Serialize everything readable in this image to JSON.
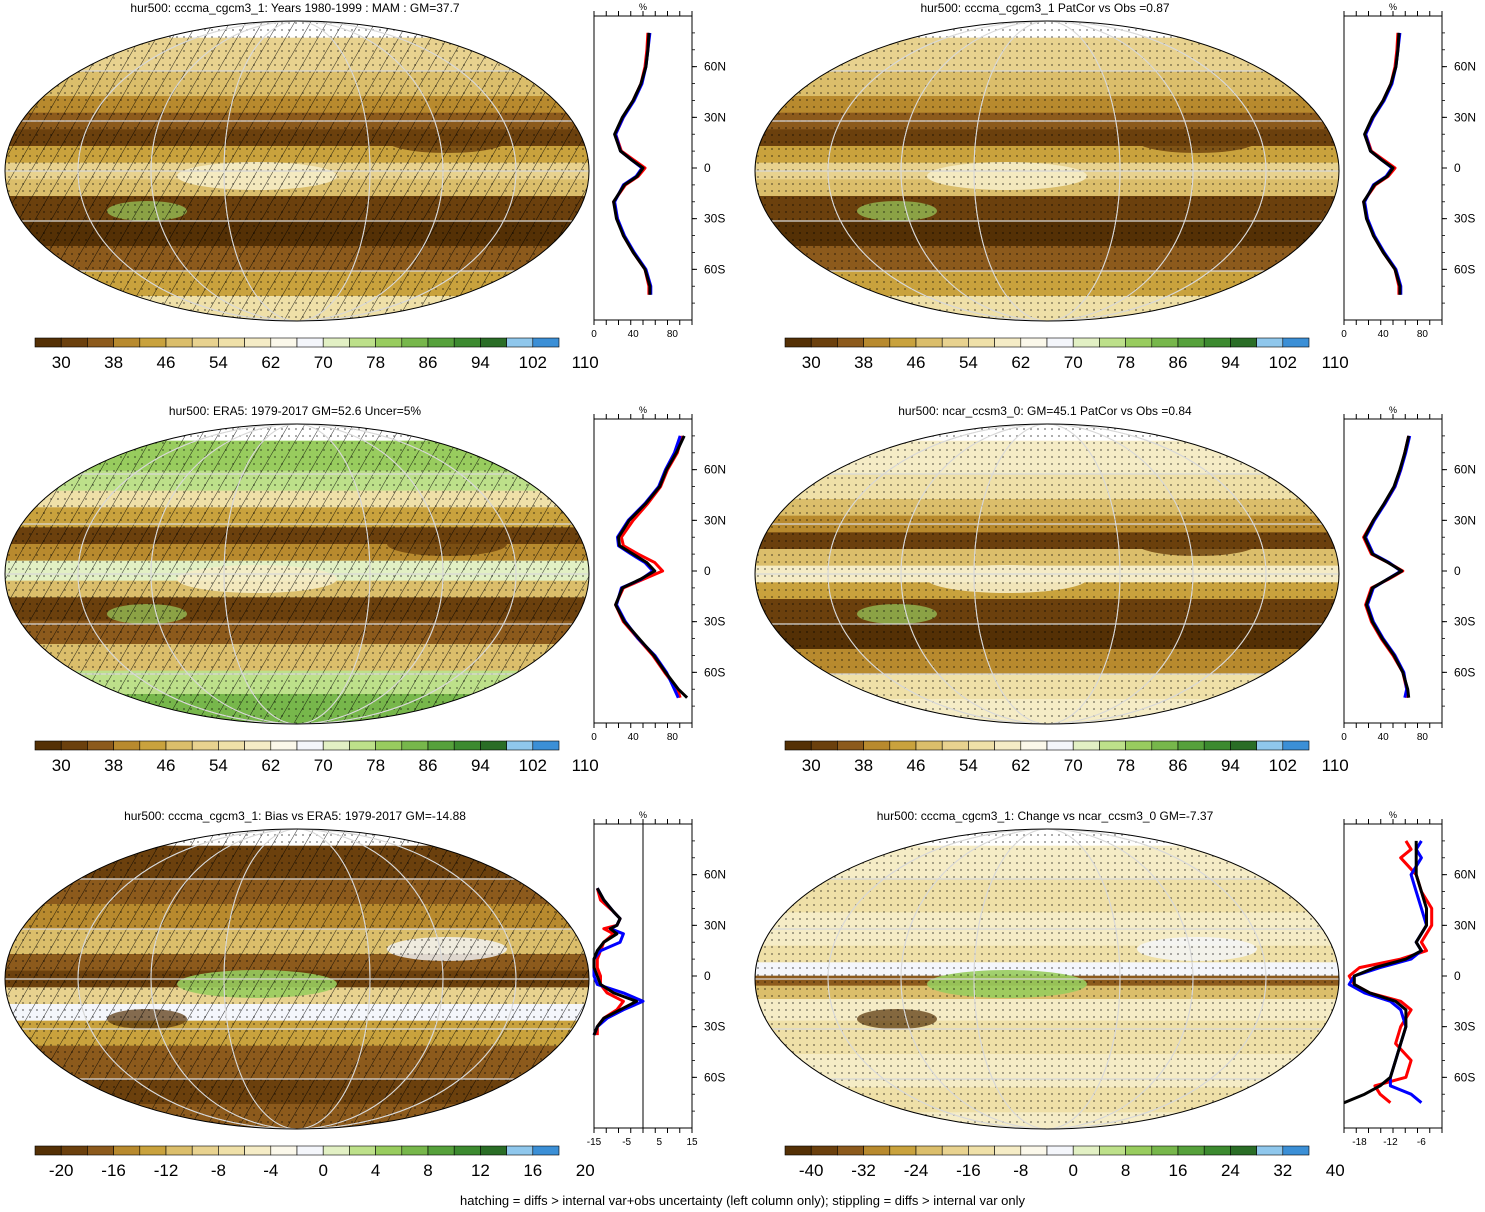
{
  "footer": "hatching = diffs > internal var+obs uncertainty (left column only); stippling = diffs > internal var only",
  "palettes": {
    "abs": [
      "#543005",
      "#6b400d",
      "#8c5a1c",
      "#b88a2e",
      "#c9a23d",
      "#dbbe6b",
      "#e8d28f",
      "#efe0a8",
      "#f5ecc6",
      "#fbf8ea",
      "#f4f6fb",
      "#e2f0c4",
      "#bde08a",
      "#98cc5e",
      "#77b74b",
      "#56a13b",
      "#3c8a2f",
      "#2a6d26",
      "#8fc7ec",
      "#3b8fd6"
    ],
    "div": [
      "#543005",
      "#6b400d",
      "#8c5a1c",
      "#b88a2e",
      "#c9a23d",
      "#dbbe6b",
      "#e8d28f",
      "#efe0a8",
      "#f5ecc6",
      "#fbf8ea",
      "#f4f6fb",
      "#e2f0c4",
      "#bde08a",
      "#98cc5e",
      "#77b74b",
      "#56a13b",
      "#3c8a2f",
      "#2a6d26",
      "#8fc7ec",
      "#3b8fd6"
    ]
  },
  "profile_unit": "%",
  "lat_ticks": [
    "60N",
    "30N",
    "0",
    "30S",
    "60S"
  ],
  "panels": [
    {
      "id": "p1",
      "title": "hur500: cccma_cgcm3_1: Years 1980-1999 : MAM : GM=37.7",
      "hatched": true,
      "cbar_labels": [
        "30",
        "38",
        "46",
        "54",
        "62",
        "70",
        "78",
        "86",
        "94",
        "102",
        "110"
      ],
      "palette": "abs",
      "xticks": [
        "0",
        "40",
        "80"
      ],
      "xrange": [
        0,
        100
      ],
      "zero_line": false,
      "series": [
        {
          "color": "#ff0000",
          "lat": [
            80,
            70,
            60,
            50,
            40,
            30,
            20,
            10,
            5,
            0,
            -5,
            -10,
            -20,
            -30,
            -40,
            -50,
            -60,
            -70,
            -75
          ],
          "val": [
            55,
            54,
            52,
            48,
            40,
            30,
            22,
            28,
            40,
            52,
            45,
            32,
            20,
            24,
            30,
            40,
            52,
            56,
            56
          ]
        },
        {
          "color": "#0000ff",
          "lat": [
            80,
            70,
            60,
            50,
            40,
            30,
            20,
            10,
            5,
            0,
            -5,
            -10,
            -20,
            -30,
            -40,
            -50,
            -60,
            -70,
            -75
          ],
          "val": [
            57,
            55,
            53,
            49,
            41,
            30,
            22,
            27,
            38,
            49,
            43,
            30,
            21,
            24,
            31,
            41,
            53,
            58,
            58
          ]
        },
        {
          "color": "#000000",
          "lat": [
            80,
            70,
            60,
            50,
            40,
            30,
            20,
            10,
            5,
            0,
            -5,
            -10,
            -20,
            -30,
            -40,
            -50,
            -60,
            -70,
            -75
          ],
          "val": [
            56,
            55,
            53,
            48,
            40,
            29,
            21,
            27,
            38,
            50,
            44,
            31,
            20,
            23,
            30,
            40,
            52,
            57,
            57
          ]
        }
      ]
    },
    {
      "id": "p2",
      "title": "hur500: cccma_cgcm3_1 PatCor vs Obs =0.87",
      "hatched": false,
      "cbar_labels": [
        "30",
        "38",
        "46",
        "54",
        "62",
        "70",
        "78",
        "86",
        "94",
        "102",
        "110"
      ],
      "palette": "abs",
      "xticks": [
        "0",
        "40",
        "80"
      ],
      "xrange": [
        0,
        100
      ],
      "zero_line": false,
      "series": [
        {
          "color": "#ff0000",
          "lat": [
            80,
            70,
            60,
            50,
            40,
            30,
            20,
            10,
            5,
            0,
            -5,
            -10,
            -20,
            -30,
            -40,
            -50,
            -60,
            -70,
            -75
          ],
          "val": [
            55,
            54,
            52,
            48,
            40,
            30,
            22,
            28,
            40,
            52,
            45,
            32,
            20,
            24,
            30,
            40,
            52,
            56,
            56
          ]
        },
        {
          "color": "#0000ff",
          "lat": [
            80,
            70,
            60,
            50,
            40,
            30,
            20,
            10,
            5,
            0,
            -5,
            -10,
            -20,
            -30,
            -40,
            -50,
            -60,
            -70,
            -75
          ],
          "val": [
            57,
            55,
            53,
            49,
            41,
            30,
            22,
            27,
            38,
            49,
            43,
            30,
            21,
            24,
            31,
            41,
            53,
            58,
            58
          ]
        },
        {
          "color": "#000000",
          "lat": [
            80,
            70,
            60,
            50,
            40,
            30,
            20,
            10,
            5,
            0,
            -5,
            -10,
            -20,
            -30,
            -40,
            -50,
            -60,
            -70,
            -75
          ],
          "val": [
            56,
            55,
            53,
            48,
            40,
            29,
            21,
            27,
            38,
            50,
            44,
            31,
            20,
            23,
            30,
            40,
            52,
            57,
            57
          ]
        }
      ]
    },
    {
      "id": "p3",
      "title": "hur500: ERA5: 1979-2017 GM=52.6 Uncer=5%",
      "hatched": true,
      "cbar_labels": [
        "30",
        "38",
        "46",
        "54",
        "62",
        "70",
        "78",
        "86",
        "94",
        "102",
        "110"
      ],
      "palette": "abs",
      "xticks": [
        "0",
        "40",
        "80"
      ],
      "xrange": [
        0,
        100
      ],
      "zero_line": false,
      "series": [
        {
          "color": "#ff0000",
          "lat": [
            80,
            70,
            60,
            50,
            40,
            30,
            20,
            15,
            10,
            5,
            0,
            -5,
            -10,
            -20,
            -30,
            -40,
            -50,
            -60,
            -70,
            -75
          ],
          "val": [
            90,
            85,
            75,
            68,
            55,
            40,
            28,
            30,
            45,
            62,
            70,
            50,
            30,
            22,
            30,
            45,
            60,
            72,
            85,
            88
          ]
        },
        {
          "color": "#0000ff",
          "lat": [
            80,
            70,
            60,
            50,
            40,
            30,
            20,
            15,
            10,
            5,
            0,
            -5,
            -10,
            -20,
            -30,
            -40,
            -50,
            -60,
            -70,
            -75
          ],
          "val": [
            88,
            82,
            73,
            66,
            52,
            35,
            24,
            25,
            38,
            52,
            60,
            48,
            28,
            23,
            32,
            45,
            62,
            74,
            82,
            86
          ]
        },
        {
          "color": "#000000",
          "lat": [
            80,
            70,
            60,
            50,
            40,
            30,
            20,
            15,
            10,
            5,
            0,
            -5,
            -10,
            -20,
            -30,
            -40,
            -50,
            -60,
            -70,
            -75
          ],
          "val": [
            92,
            84,
            74,
            67,
            53,
            36,
            25,
            26,
            40,
            54,
            62,
            47,
            29,
            22,
            31,
            46,
            61,
            73,
            86,
            95
          ]
        }
      ]
    },
    {
      "id": "p4",
      "title": "hur500: ncar_ccsm3_0: GM=45.1 PatCor vs Obs =0.84",
      "hatched": false,
      "cbar_labels": [
        "30",
        "38",
        "46",
        "54",
        "62",
        "70",
        "78",
        "86",
        "94",
        "102",
        "110"
      ],
      "palette": "abs",
      "xticks": [
        "0",
        "40",
        "80"
      ],
      "xrange": [
        0,
        100
      ],
      "zero_line": false,
      "series": [
        {
          "color": "#ff0000",
          "lat": [
            80,
            70,
            60,
            50,
            40,
            30,
            20,
            10,
            5,
            0,
            -5,
            -10,
            -20,
            -30,
            -40,
            -50,
            -60,
            -70,
            -75
          ],
          "val": [
            66,
            62,
            58,
            52,
            42,
            30,
            20,
            28,
            45,
            60,
            45,
            28,
            22,
            28,
            38,
            50,
            60,
            64,
            65
          ]
        },
        {
          "color": "#0000ff",
          "lat": [
            80,
            70,
            60,
            50,
            40,
            30,
            20,
            10,
            5,
            0,
            -5,
            -10,
            -20,
            -30,
            -40,
            -50,
            -60,
            -70,
            -75
          ],
          "val": [
            67,
            63,
            58,
            52,
            42,
            31,
            22,
            30,
            46,
            58,
            44,
            30,
            24,
            30,
            40,
            52,
            61,
            64,
            62
          ]
        },
        {
          "color": "#000000",
          "lat": [
            80,
            70,
            60,
            50,
            40,
            30,
            20,
            10,
            5,
            0,
            -5,
            -10,
            -20,
            -30,
            -40,
            -50,
            -60,
            -70,
            -75
          ],
          "val": [
            66,
            62,
            57,
            51,
            41,
            30,
            21,
            29,
            45,
            59,
            44,
            29,
            23,
            29,
            39,
            51,
            60,
            65,
            66
          ]
        }
      ]
    },
    {
      "id": "p5",
      "title": "hur500: cccma_cgcm3_1: Bias vs ERA5: 1979-2017 GM=-14.88",
      "hatched": true,
      "cbar_labels": [
        "-20",
        "-16",
        "-12",
        "-8",
        "-4",
        "0",
        "4",
        "8",
        "12",
        "16",
        "20"
      ],
      "palette": "div",
      "xticks": [
        "-15",
        "-5",
        "5",
        "15"
      ],
      "xrange": [
        -15,
        15
      ],
      "zero_line": true,
      "series": [
        {
          "color": "#ff0000",
          "lat": [
            52,
            45,
            38,
            34,
            30,
            28,
            25,
            20,
            15,
            10,
            5,
            0,
            -5,
            -10,
            -15,
            -20,
            -25,
            -30,
            -35
          ],
          "val": [
            -14,
            -13,
            -9,
            -7,
            -8,
            -12,
            -9,
            -12,
            -13,
            -14,
            -14,
            -13,
            -13,
            -11,
            -6,
            -8,
            -12,
            -14,
            -14
          ]
        },
        {
          "color": "#0000ff",
          "lat": [
            52,
            45,
            38,
            34,
            30,
            28,
            25,
            20,
            15,
            10,
            5,
            0,
            -5,
            -10,
            -15,
            -20,
            -25,
            -30,
            -35
          ],
          "val": [
            -14,
            -12,
            -9,
            -7,
            -8,
            -10,
            -6,
            -7,
            -13,
            -15,
            -15,
            -15,
            -14,
            -6,
            0,
            -6,
            -11,
            -14,
            -15
          ]
        },
        {
          "color": "#000000",
          "lat": [
            52,
            45,
            38,
            34,
            30,
            28,
            25,
            20,
            15,
            10,
            5,
            0,
            -5,
            -10,
            -15,
            -20,
            -25,
            -30,
            -35
          ],
          "val": [
            -14,
            -12,
            -9,
            -7,
            -8,
            -10,
            -8,
            -12,
            -14,
            -15,
            -15,
            -14,
            -13,
            -9,
            -2,
            -7,
            -12,
            -14,
            -15
          ]
        }
      ]
    },
    {
      "id": "p6",
      "title": "hur500: cccma_cgcm3_1: Change vs ncar_ccsm3_0 GM=-7.37",
      "hatched": false,
      "cbar_labels": [
        "-40",
        "-32",
        "-24",
        "-16",
        "-8",
        "0",
        "8",
        "16",
        "24",
        "32",
        "40"
      ],
      "palette": "div",
      "xticks": [
        "-18",
        "-12",
        "-6"
      ],
      "xrange": [
        -21,
        -2
      ],
      "zero_line": false,
      "series": [
        {
          "color": "#ff0000",
          "lat": [
            80,
            75,
            70,
            60,
            50,
            40,
            30,
            20,
            15,
            10,
            5,
            0,
            -5,
            -10,
            -15,
            -20,
            -30,
            -40,
            -50,
            -60,
            -65,
            -70,
            -75
          ],
          "val": [
            -9,
            -8,
            -10,
            -7,
            -6,
            -4,
            -4,
            -6,
            -5,
            -10,
            -18,
            -20,
            -19,
            -16,
            -10,
            -8,
            -10,
            -11,
            -8,
            -9,
            -15,
            -14,
            -12
          ]
        },
        {
          "color": "#0000ff",
          "lat": [
            80,
            75,
            70,
            60,
            50,
            40,
            30,
            20,
            15,
            10,
            5,
            0,
            -5,
            -10,
            -15,
            -20,
            -30,
            -40,
            -50,
            -60,
            -65,
            -70,
            -75
          ],
          "val": [
            -6,
            -7,
            -6,
            -8,
            -7,
            -6,
            -5,
            -7,
            -6,
            -8,
            -14,
            -19,
            -20,
            -17,
            -12,
            -10,
            -9,
            -10,
            -11,
            -12,
            -12,
            -8,
            -6
          ]
        },
        {
          "color": "#000000",
          "lat": [
            80,
            75,
            70,
            60,
            50,
            40,
            30,
            20,
            15,
            10,
            5,
            0,
            -5,
            -10,
            -15,
            -20,
            -30,
            -40,
            -50,
            -60,
            -65,
            -70,
            -75
          ],
          "val": [
            -7,
            -7,
            -7,
            -7,
            -6,
            -5,
            -5,
            -7,
            -6,
            -9,
            -15,
            -19,
            -19,
            -16,
            -11,
            -9,
            -9,
            -10,
            -11,
            -12,
            -14,
            -17,
            -21
          ]
        }
      ]
    }
  ]
}
